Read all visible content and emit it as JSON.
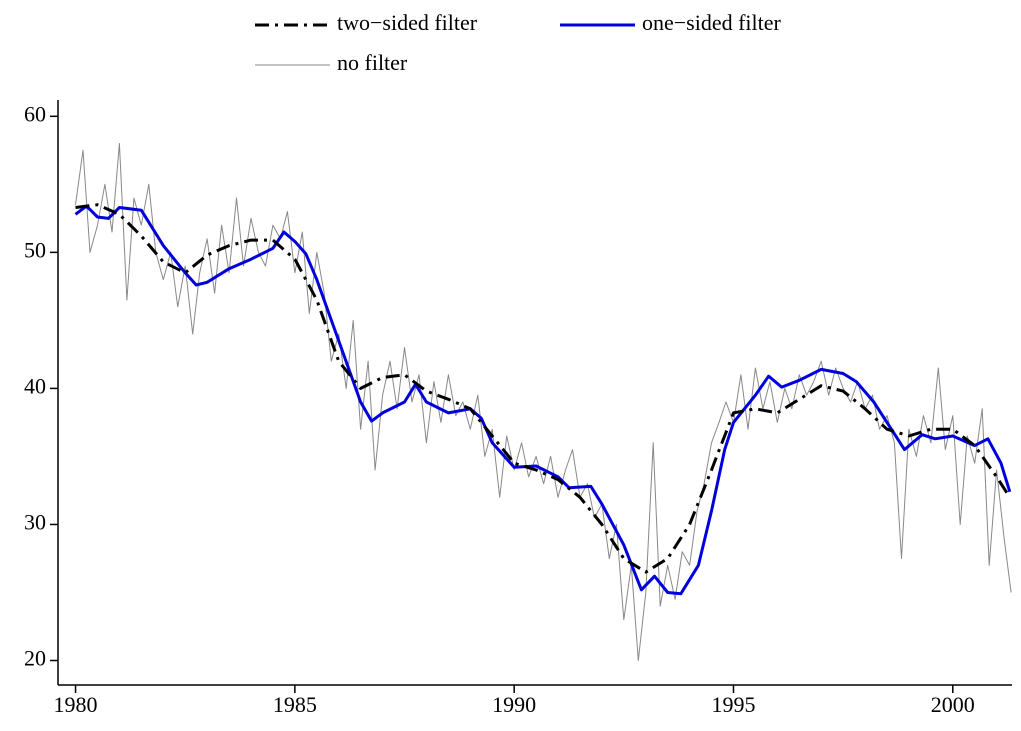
{
  "chart_data": {
    "type": "line",
    "xlim": [
      1979.6,
      2001.35
    ],
    "xticks": [
      1980,
      1985,
      1990,
      1995,
      2000
    ],
    "ylim": [
      18.2,
      61.2
    ],
    "yticks": [
      20,
      30,
      40,
      50,
      60
    ],
    "grid": false,
    "legend": "top",
    "series": [
      {
        "name": "two−sided filter",
        "color": "#000000",
        "style": "dashdot",
        "width": 3,
        "x": [
          1980,
          1980.5,
          1981,
          1981.5,
          1982,
          1982.5,
          1983,
          1983.5,
          1984,
          1984.5,
          1985,
          1985.5,
          1986,
          1986.5,
          1987,
          1987.5,
          1988,
          1988.5,
          1989,
          1989.5,
          1990,
          1990.5,
          1991,
          1991.5,
          1992,
          1992.5,
          1993,
          1993.5,
          1994,
          1994.5,
          1995,
          1995.5,
          1996,
          1996.5,
          1997,
          1997.5,
          1998,
          1998.5,
          1999,
          1999.5,
          2000,
          2000.5,
          2001,
          2001.3
        ],
        "values": [
          53.3,
          53.5,
          52.8,
          51.2,
          49.3,
          48.5,
          49.8,
          50.5,
          50.9,
          50.9,
          49.5,
          46.5,
          42,
          40,
          40.8,
          41,
          39.8,
          39.2,
          38.5,
          36.5,
          34.5,
          34,
          33.3,
          32,
          30,
          27.5,
          26.5,
          27.5,
          30,
          34,
          38.2,
          38.5,
          38.2,
          39.2,
          40.2,
          39.8,
          38.5,
          37,
          36.5,
          37,
          37,
          35.8,
          33.5,
          32
        ]
      },
      {
        "name": "one−sided filter",
        "color": "#0000dd",
        "style": "solid",
        "width": 3,
        "x": [
          1980,
          1980.25,
          1980.5,
          1980.75,
          1981,
          1981.5,
          1982,
          1982.5,
          1982.75,
          1983,
          1983.5,
          1984,
          1984.5,
          1984.75,
          1985,
          1985.25,
          1985.5,
          1986,
          1986.5,
          1986.75,
          1987,
          1987.5,
          1987.75,
          1988,
          1988.5,
          1989,
          1989.25,
          1989.5,
          1990,
          1990.5,
          1991,
          1991.25,
          1991.75,
          1992,
          1992.5,
          1992.9,
          1993.2,
          1993.5,
          1993.8,
          1994.2,
          1994.5,
          1994.8,
          1995,
          1995.5,
          1995.8,
          1996.1,
          1996.5,
          1997,
          1997.5,
          1997.8,
          1998.2,
          1998.5,
          1998.9,
          1999.3,
          1999.6,
          2000,
          2000.5,
          2000.8,
          2001.1,
          2001.3
        ],
        "values": [
          52.8,
          53.4,
          52.6,
          52.5,
          53.3,
          53.1,
          50.5,
          48.5,
          47.6,
          47.8,
          48.8,
          49.5,
          50.3,
          51.5,
          50.8,
          49.9,
          48,
          43.5,
          39,
          37.6,
          38.2,
          39,
          40.3,
          39,
          38.2,
          38.5,
          37.8,
          36,
          34.2,
          34.3,
          33.5,
          32.7,
          32.8,
          31.5,
          28.5,
          25.2,
          26.2,
          25,
          24.9,
          27,
          31,
          35.5,
          37.5,
          39.5,
          40.9,
          40.1,
          40.6,
          41.4,
          41.1,
          40.5,
          39,
          37.5,
          35.5,
          36.6,
          36.3,
          36.5,
          35.8,
          36.3,
          34.5,
          32.4
        ]
      },
      {
        "name": "no filter",
        "color": "#888888",
        "style": "solid",
        "width": 1,
        "x": [
          1980,
          1980.17,
          1980.33,
          1980.5,
          1980.67,
          1980.83,
          1981,
          1981.17,
          1981.33,
          1981.5,
          1981.67,
          1981.83,
          1982,
          1982.17,
          1982.33,
          1982.5,
          1982.67,
          1982.83,
          1983,
          1983.17,
          1983.33,
          1983.5,
          1983.67,
          1983.83,
          1984,
          1984.17,
          1984.33,
          1984.5,
          1984.67,
          1984.83,
          1985,
          1985.17,
          1985.33,
          1985.5,
          1985.67,
          1985.83,
          1986,
          1986.17,
          1986.33,
          1986.5,
          1986.67,
          1986.83,
          1987,
          1987.17,
          1987.33,
          1987.5,
          1987.67,
          1987.83,
          1988,
          1988.17,
          1988.33,
          1988.5,
          1988.67,
          1988.83,
          1989,
          1989.17,
          1989.33,
          1989.5,
          1989.67,
          1989.83,
          1990,
          1990.17,
          1990.33,
          1990.5,
          1990.67,
          1990.83,
          1991,
          1991.17,
          1991.33,
          1991.5,
          1991.67,
          1991.83,
          1992,
          1992.17,
          1992.33,
          1992.5,
          1992.67,
          1992.83,
          1993,
          1993.17,
          1993.33,
          1993.5,
          1993.67,
          1993.83,
          1994,
          1994.17,
          1994.33,
          1994.5,
          1994.67,
          1994.83,
          1995,
          1995.17,
          1995.33,
          1995.5,
          1995.67,
          1995.83,
          1996,
          1996.17,
          1996.33,
          1996.5,
          1996.67,
          1996.83,
          1997,
          1997.17,
          1997.33,
          1997.5,
          1997.67,
          1997.83,
          1998,
          1998.17,
          1998.33,
          1998.5,
          1998.67,
          1998.83,
          1999,
          1999.17,
          1999.33,
          1999.5,
          1999.67,
          1999.83,
          2000,
          2000.17,
          2000.33,
          2000.5,
          2000.67,
          2000.83,
          2001,
          2001.17,
          2001.33
        ],
        "values": [
          53.5,
          57.5,
          50,
          52,
          55,
          51.5,
          58,
          46.5,
          54,
          52,
          55,
          50,
          48,
          50,
          46,
          49,
          44,
          48.5,
          51,
          47,
          52,
          48.5,
          54,
          49,
          52.5,
          50,
          49,
          52,
          51,
          53,
          48.5,
          51.5,
          45.5,
          50,
          47,
          42,
          44,
          40,
          45,
          37,
          42,
          34,
          39.5,
          42,
          38.5,
          43,
          39,
          41,
          36,
          40.5,
          37.5,
          41,
          38,
          39,
          37,
          39.5,
          35,
          37,
          32,
          36.5,
          34,
          36,
          33.5,
          35,
          33,
          35,
          32,
          34,
          35.5,
          32,
          33,
          30.5,
          31.5,
          27.5,
          30,
          23,
          27,
          20,
          25,
          36,
          24,
          27,
          24.5,
          28,
          27,
          31,
          33,
          36,
          37.5,
          39,
          37.5,
          41,
          37,
          41.5,
          38.5,
          40.5,
          37.5,
          40,
          38.5,
          41,
          39.5,
          40.5,
          42,
          39.5,
          41.5,
          40,
          39,
          40.5,
          38.5,
          39.5,
          37,
          38,
          36,
          27.5,
          37,
          35,
          38,
          36,
          41.5,
          35.5,
          38,
          30,
          36.5,
          34.5,
          38.5,
          27,
          34,
          29,
          25
        ]
      }
    ]
  }
}
